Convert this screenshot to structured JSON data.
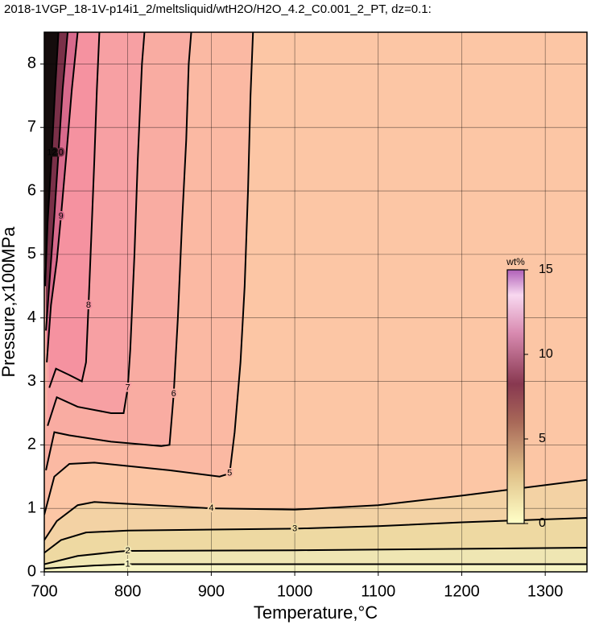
{
  "chart_data": {
    "type": "contour",
    "title": "2018-1VGP_18-1V-p14i1_2/meltsliquid/wtH2O/H2O_4.2_C0.001_2_PT, dz=0.1:",
    "x_label": "Temperature,°C",
    "y_label": "Pressure,x100MPa",
    "xlim": [
      700,
      1350
    ],
    "ylim": [
      0,
      8.5
    ],
    "xticks": [
      700,
      800,
      900,
      1000,
      1100,
      1200,
      1300
    ],
    "yticks": [
      0,
      1,
      2,
      3,
      4,
      5,
      6,
      7,
      8
    ],
    "grid": true,
    "background": "#fcc6a5",
    "colorbar": {
      "title": "wt%",
      "lim": [
        0,
        15
      ],
      "ticks": [
        0,
        5,
        10,
        15
      ]
    },
    "series": [
      {
        "name": "4",
        "color": "#000000",
        "fill": "#f3d2a4",
        "fill_side": "below",
        "x": [
          700,
          715,
          740,
          760,
          900,
          1000,
          1100,
          1200,
          1350
        ],
        "y": [
          0.5,
          0.8,
          1.05,
          1.1,
          1.0,
          0.98,
          1.05,
          1.2,
          1.45
        ]
      },
      {
        "name": "3",
        "color": "#000000",
        "fill": "#eed9a2",
        "fill_side": "below",
        "x": [
          700,
          720,
          750,
          800,
          1000,
          1100,
          1200,
          1350
        ],
        "y": [
          0.3,
          0.5,
          0.62,
          0.65,
          0.68,
          0.72,
          0.78,
          0.85
        ]
      },
      {
        "name": "2",
        "color": "#000000",
        "fill": "#efe6b3",
        "fill_side": "below",
        "x": [
          700,
          740,
          790,
          800,
          1000,
          1350
        ],
        "y": [
          0.12,
          0.25,
          0.32,
          0.33,
          0.34,
          0.38
        ]
      },
      {
        "name": "1",
        "color": "#000000",
        "fill": "#f7f5c4",
        "fill_side": "below",
        "x": [
          700,
          760,
          800,
          1350
        ],
        "y": [
          0.05,
          0.1,
          0.12,
          0.12
        ]
      },
      {
        "name": "5",
        "color": "#000000",
        "fill": "#fbb9a3",
        "fill_side": "left",
        "x": [
          700,
          712,
          730,
          760,
          850,
          910,
          922,
          928,
          935,
          940,
          944,
          947,
          950
        ],
        "y": [
          0.9,
          1.5,
          1.7,
          1.72,
          1.6,
          1.5,
          1.55,
          2.2,
          3.3,
          4.5,
          6,
          7.5,
          8.5
        ]
      },
      {
        "name": "6",
        "color": "#000000",
        "fill": "#f9aca2",
        "fill_side": "left",
        "x": [
          702,
          712,
          730,
          780,
          840,
          850,
          855,
          860,
          865,
          870,
          873,
          876
        ],
        "y": [
          1.6,
          2.2,
          2.15,
          2.05,
          1.98,
          2.0,
          2.8,
          4,
          5.5,
          6.8,
          8,
          8.5
        ]
      },
      {
        "name": "7",
        "color": "#000000",
        "fill": "#f7a0a3",
        "fill_side": "left",
        "x": [
          704,
          715,
          740,
          780,
          795,
          800,
          803,
          808,
          812,
          817,
          820
        ],
        "y": [
          2.3,
          2.75,
          2.6,
          2.5,
          2.5,
          2.9,
          3.5,
          5,
          6.5,
          8,
          8.5
        ]
      },
      {
        "name": "8",
        "color": "#000000",
        "fill": "#f592a0",
        "fill_side": "left",
        "x": [
          706,
          714,
          730,
          745,
          750,
          753,
          757,
          760,
          763,
          766
        ],
        "y": [
          2.9,
          3.2,
          3.1,
          3.0,
          3.3,
          4.2,
          5.5,
          6.5,
          7.6,
          8.5
        ]
      },
      {
        "name": "9",
        "color": "#000000",
        "fill": "#d86a8c",
        "fill_side": "left",
        "x": [
          703,
          708,
          715,
          720,
          726,
          733,
          740
        ],
        "y": [
          3.3,
          4.2,
          4.9,
          5.6,
          6.5,
          7.6,
          8.5
        ]
      },
      {
        "name": "10",
        "color": "#000000",
        "fill": "#7a3048",
        "fill_side": "left",
        "x": [
          702,
          707,
          712,
          717,
          722,
          728
        ],
        "y": [
          3.8,
          4.7,
          5.6,
          6.6,
          7.6,
          8.5
        ]
      },
      {
        "name": "12",
        "color": "#000000",
        "fill": "#140c0c",
        "fill_side": "left",
        "x": [
          701,
          704,
          709,
          713,
          717
        ],
        "y": [
          4.5,
          5.5,
          6.6,
          7.6,
          8.5
        ]
      }
    ]
  }
}
